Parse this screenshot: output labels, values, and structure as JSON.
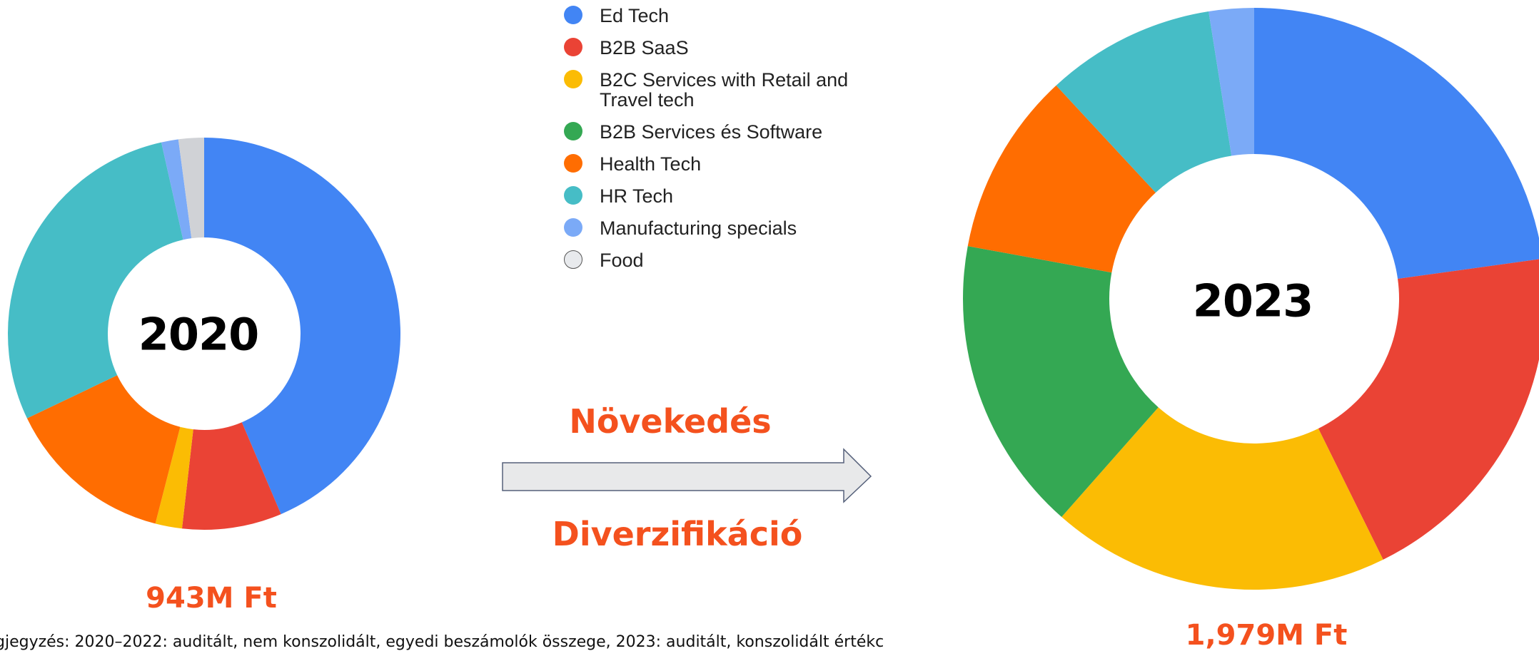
{
  "legend": {
    "categories": [
      "Ed Tech",
      "B2B SaaS",
      "B2C Services with Retail and Travel tech",
      "B2B Services és Software",
      "Health Tech",
      "HR Tech",
      "Manufacturing specials",
      "Food"
    ],
    "colors": [
      "#4285f4",
      "#ea4335",
      "#fbbc04",
      "#34a853",
      "#ff6d01",
      "#46bdc6",
      "#7baaf7",
      "#d0d2d6"
    ]
  },
  "chart_data": [
    {
      "type": "pie",
      "title": "2020",
      "total_label": "943M Ft",
      "values": [
        43.6,
        8.2,
        2.2,
        0,
        13.9,
        28.6,
        1.4,
        2.1
      ]
    },
    {
      "type": "pie",
      "title": "2023",
      "total_label": "1,979M Ft",
      "values": [
        22.8,
        19.9,
        18.8,
        16.4,
        10.2,
        9.4,
        2.5,
        0
      ]
    }
  ],
  "arrow": {
    "top_label": "Növekedés",
    "bottom_label": "Diverzifikáció"
  },
  "footnote": "gjegyzés: 2020–2022: auditált, nem konszolidált, egyedi beszámolók összege, 2023: auditált, konszolidált értékc"
}
